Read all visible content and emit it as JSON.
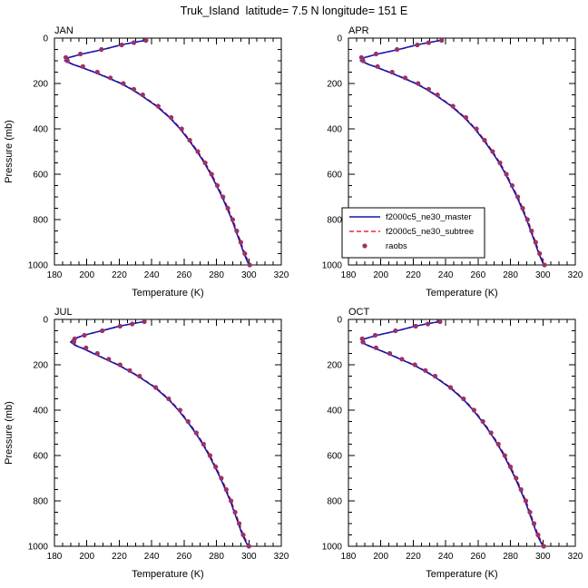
{
  "figure": {
    "title": "Truk_Island  latitude= 7.5 N longitude= 151 E",
    "background": "#ffffff"
  },
  "axes": {
    "xlabel": "Temperature (K)",
    "ylabel": "Pressure (mb)",
    "xlim": [
      180,
      320
    ],
    "xticks": [
      180,
      200,
      220,
      240,
      260,
      280,
      300,
      320
    ],
    "x_minor_step": 5,
    "ylim": [
      0,
      1000
    ],
    "yticks": [
      0,
      200,
      400,
      600,
      800,
      1000
    ],
    "y_minor_step": 50,
    "y_inverted_note": "pressure increases downward"
  },
  "legend": {
    "panel": "apr",
    "entries": [
      {
        "label": "f2000c5_ne30_master",
        "type": "line",
        "dash": "solid",
        "color": "#1515b4"
      },
      {
        "label": "f2000c5_ne30_subtree",
        "type": "line",
        "dash": "dashed",
        "color": "#e60000"
      },
      {
        "label": "raobs",
        "type": "marker",
        "dash": "none",
        "color": "#993366"
      }
    ]
  },
  "chart_data": [
    {
      "type": "line",
      "id": "jan",
      "label": "JAN",
      "show_ylabel": true,
      "series": [
        {
          "name": "f2000c5_ne30_master",
          "pressure": [
            10,
            20,
            30,
            50,
            70,
            85,
            100,
            115,
            125,
            150,
            175,
            200,
            225,
            250,
            300,
            350,
            400,
            450,
            500,
            550,
            600,
            650,
            700,
            750,
            800,
            850,
            900,
            950,
            1000
          ],
          "temperature": [
            236,
            228,
            221,
            210,
            197,
            189,
            186.5,
            191,
            195,
            204.5,
            213,
            221,
            227.5,
            233,
            243,
            251,
            257.5,
            263,
            268,
            272.5,
            276.5,
            280,
            283.5,
            286.5,
            289.5,
            292,
            294.5,
            297,
            300
          ]
        },
        {
          "name": "f2000c5_ne30_subtree",
          "pressure": [
            10,
            20,
            30,
            50,
            70,
            85,
            100,
            115,
            125,
            150,
            175,
            200,
            225,
            250,
            300,
            350,
            400,
            450,
            500,
            550,
            600,
            650,
            700,
            750,
            800,
            850,
            900,
            950,
            1000
          ],
          "temperature": [
            236.6,
            228.6,
            221.6,
            210.6,
            197.6,
            189.6,
            187.1,
            191.6,
            195.6,
            205.1,
            213.6,
            221.6,
            228.1,
            233.6,
            243.6,
            251.6,
            258.1,
            263.6,
            268.6,
            273.1,
            277.1,
            280.6,
            284.1,
            287.1,
            290.1,
            292.6,
            295.1,
            297.6,
            300.6
          ]
        },
        {
          "name": "raobs",
          "pressure": [
            1000,
            950,
            900,
            850,
            800,
            750,
            700,
            650,
            600,
            550,
            500,
            450,
            400,
            350,
            300,
            250,
            225,
            200,
            175,
            150,
            125,
            100,
            85,
            70,
            50,
            30,
            20,
            10
          ],
          "temperature": [
            300.5,
            297.5,
            295,
            292.5,
            290,
            287,
            284,
            280.5,
            277,
            273,
            268.5,
            263.5,
            258.5,
            252,
            244,
            234.5,
            229,
            222.5,
            214.5,
            206.5,
            197.5,
            188,
            187,
            196,
            209,
            221.5,
            229,
            236.5
          ]
        }
      ]
    },
    {
      "type": "line",
      "id": "apr",
      "label": "APR",
      "show_ylabel": false,
      "series": [
        {
          "name": "f2000c5_ne30_master",
          "pressure": [
            10,
            20,
            30,
            50,
            70,
            85,
            100,
            115,
            125,
            150,
            175,
            200,
            225,
            250,
            300,
            350,
            400,
            450,
            500,
            550,
            600,
            650,
            700,
            750,
            800,
            850,
            900,
            950,
            1000
          ],
          "temperature": [
            237,
            229,
            222,
            211,
            198,
            190,
            187.5,
            192,
            196,
            205,
            213.5,
            221.5,
            228,
            233.5,
            243.5,
            251.5,
            258,
            263.5,
            268.5,
            273,
            277,
            280.5,
            284,
            287,
            290,
            292.5,
            295,
            297.5,
            300.5
          ]
        },
        {
          "name": "f2000c5_ne30_subtree",
          "pressure": [
            10,
            20,
            30,
            50,
            70,
            85,
            100,
            115,
            125,
            150,
            175,
            200,
            225,
            250,
            300,
            350,
            400,
            450,
            500,
            550,
            600,
            650,
            700,
            750,
            800,
            850,
            900,
            950,
            1000
          ],
          "temperature": [
            237.6,
            229.6,
            222.6,
            211.6,
            198.6,
            190.6,
            188.1,
            192.6,
            196.6,
            205.6,
            214.1,
            222.1,
            228.6,
            234.1,
            244.1,
            252.1,
            258.6,
            264.1,
            269.1,
            273.6,
            277.6,
            281.1,
            284.6,
            287.6,
            290.6,
            293.1,
            295.6,
            298.1,
            301.1
          ]
        },
        {
          "name": "raobs",
          "pressure": [
            1000,
            950,
            900,
            850,
            800,
            750,
            700,
            650,
            600,
            550,
            500,
            450,
            400,
            350,
            300,
            250,
            225,
            200,
            175,
            150,
            125,
            100,
            85,
            70,
            50,
            30,
            20,
            10
          ],
          "temperature": [
            301,
            298,
            295.5,
            293,
            290.5,
            287.5,
            284.5,
            281,
            277.5,
            273.5,
            269,
            264,
            259,
            252.5,
            244.5,
            235,
            229.5,
            223,
            215,
            207,
            198,
            189,
            188,
            197,
            210,
            222.5,
            229.5,
            237.5
          ]
        }
      ]
    },
    {
      "type": "line",
      "id": "jul",
      "label": "JUL",
      "show_ylabel": true,
      "series": [
        {
          "name": "f2000c5_ne30_master",
          "pressure": [
            10,
            20,
            30,
            50,
            70,
            85,
            100,
            115,
            125,
            150,
            175,
            200,
            225,
            250,
            300,
            350,
            400,
            450,
            500,
            550,
            600,
            650,
            700,
            750,
            800,
            850,
            900,
            950,
            1000
          ],
          "temperature": [
            235,
            227,
            220,
            209,
            198,
            192,
            190,
            193,
            196.5,
            204,
            211.5,
            219,
            225.5,
            231.5,
            242,
            250,
            256.5,
            262,
            267,
            271.5,
            275.5,
            279,
            282.5,
            285.5,
            288.5,
            291,
            293.5,
            296,
            299.5
          ]
        },
        {
          "name": "f2000c5_ne30_subtree",
          "pressure": [
            10,
            20,
            30,
            50,
            70,
            85,
            100,
            115,
            125,
            150,
            175,
            200,
            225,
            250,
            300,
            350,
            400,
            450,
            500,
            550,
            600,
            650,
            700,
            750,
            800,
            850,
            900,
            950,
            1000
          ],
          "temperature": [
            235.6,
            227.6,
            220.6,
            209.6,
            198.6,
            192.6,
            190.6,
            193.6,
            197.1,
            204.6,
            212.1,
            219.6,
            226.1,
            232.1,
            242.6,
            250.6,
            257.1,
            262.6,
            267.6,
            272.1,
            276.1,
            279.6,
            283.1,
            286.1,
            289.1,
            291.6,
            294.1,
            296.6,
            300.1
          ]
        },
        {
          "name": "raobs",
          "pressure": [
            1000,
            950,
            900,
            850,
            800,
            750,
            700,
            650,
            600,
            550,
            500,
            450,
            400,
            350,
            300,
            250,
            225,
            200,
            175,
            150,
            125,
            100,
            85,
            70,
            50,
            30,
            20,
            10
          ],
          "temperature": [
            300,
            296.5,
            294,
            291.5,
            289,
            286,
            283,
            279.5,
            276,
            272,
            267.5,
            262.5,
            257.5,
            250.5,
            242.5,
            232.5,
            226.5,
            220.5,
            213.5,
            206.5,
            199.5,
            192,
            192.5,
            198.5,
            209.5,
            220.5,
            228,
            235.5
          ]
        }
      ]
    },
    {
      "type": "line",
      "id": "oct",
      "label": "OCT",
      "show_ylabel": false,
      "series": [
        {
          "name": "f2000c5_ne30_master",
          "pressure": [
            10,
            20,
            30,
            50,
            70,
            85,
            100,
            115,
            125,
            150,
            175,
            200,
            225,
            250,
            300,
            350,
            400,
            450,
            500,
            550,
            600,
            650,
            700,
            750,
            800,
            850,
            900,
            950,
            1000
          ],
          "temperature": [
            236,
            228,
            221,
            210,
            197.5,
            190,
            188,
            192,
            195.5,
            204,
            212,
            220,
            226.5,
            232.5,
            242.5,
            250.5,
            257,
            262.5,
            267.5,
            272,
            276,
            279.5,
            283,
            286,
            289,
            291.5,
            294,
            296.5,
            300
          ]
        },
        {
          "name": "f2000c5_ne30_subtree",
          "pressure": [
            10,
            20,
            30,
            50,
            70,
            85,
            100,
            115,
            125,
            150,
            175,
            200,
            225,
            250,
            300,
            350,
            400,
            450,
            500,
            550,
            600,
            650,
            700,
            750,
            800,
            850,
            900,
            950,
            1000
          ],
          "temperature": [
            236.6,
            228.6,
            221.6,
            210.6,
            198.1,
            190.6,
            188.6,
            192.6,
            196.1,
            204.6,
            212.6,
            220.6,
            227.1,
            233.1,
            243.1,
            251.1,
            257.6,
            263.1,
            268.1,
            272.6,
            276.6,
            280.1,
            283.6,
            286.6,
            289.6,
            292.1,
            294.6,
            297.1,
            300.6
          ]
        },
        {
          "name": "raobs",
          "pressure": [
            1000,
            950,
            900,
            850,
            800,
            750,
            700,
            650,
            600,
            550,
            500,
            450,
            400,
            350,
            300,
            250,
            225,
            200,
            175,
            150,
            125,
            100,
            85,
            70,
            50,
            30,
            20,
            10
          ],
          "temperature": [
            300.5,
            297,
            294.5,
            292,
            289.5,
            286.5,
            283.5,
            280,
            276.5,
            272.5,
            268,
            263,
            257.5,
            251,
            243,
            233.5,
            227.5,
            221,
            213,
            205.5,
            197,
            189,
            188.5,
            196.5,
            209,
            221.5,
            229,
            236.5
          ]
        }
      ]
    }
  ]
}
